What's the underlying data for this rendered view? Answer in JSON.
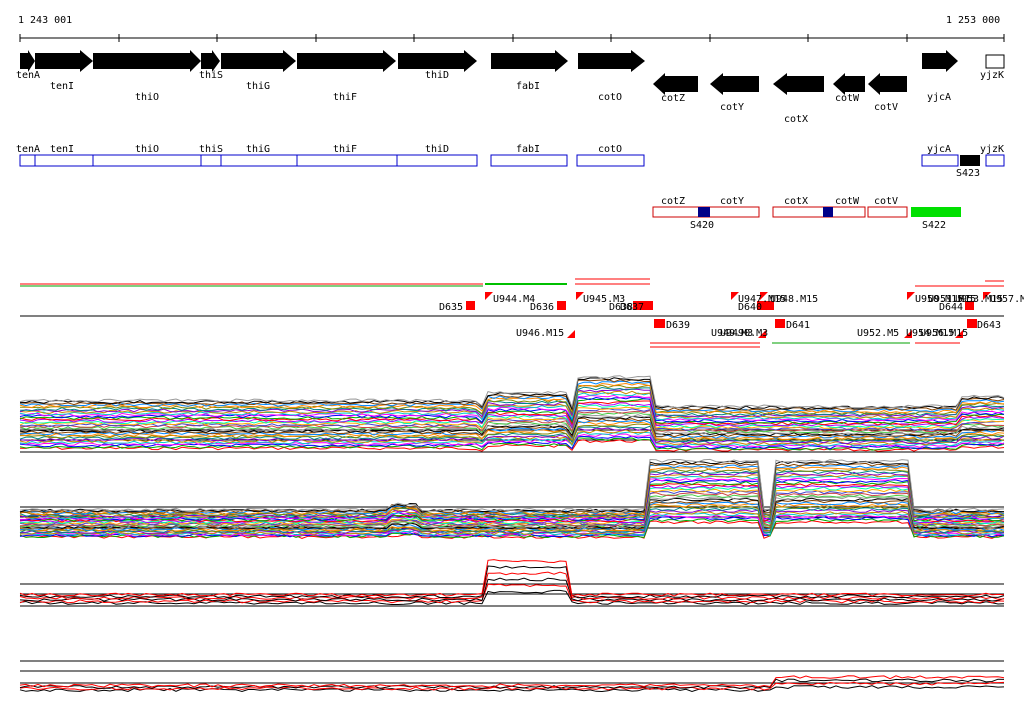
{
  "ruler": {
    "start_label": "1 243 001",
    "end_label": "1 253 000"
  },
  "genes_fwd": [
    {
      "label": "tenA"
    },
    {
      "label": "tenI"
    },
    {
      "label": "thiO"
    },
    {
      "label": "thiS"
    },
    {
      "label": "thiG"
    },
    {
      "label": "thiF"
    },
    {
      "label": "thiD"
    },
    {
      "label": "fabI"
    },
    {
      "label": "cotO"
    },
    {
      "label": "yjcA"
    },
    {
      "label": "yjzK"
    }
  ],
  "genes_rev": [
    {
      "label": "cotZ"
    },
    {
      "label": "cotY"
    },
    {
      "label": "cotX"
    },
    {
      "label": "cotW"
    },
    {
      "label": "cotV"
    }
  ],
  "operons_fwd": [
    {
      "label": "tenA"
    },
    {
      "label": "tenI"
    },
    {
      "label": "thiO"
    },
    {
      "label": "thiS"
    },
    {
      "label": "thiG"
    },
    {
      "label": "thiF"
    },
    {
      "label": "thiD"
    },
    {
      "label": "fabI"
    },
    {
      "label": "cotO"
    },
    {
      "label": "yjcA"
    },
    {
      "label": "yjzK"
    },
    {
      "label": "S423"
    }
  ],
  "operons_rev": [
    {
      "label": "cotZ"
    },
    {
      "label": "cotY"
    },
    {
      "label": "S420"
    },
    {
      "label": "cotX"
    },
    {
      "label": "cotW"
    },
    {
      "label": "cotV"
    },
    {
      "label": "S422"
    }
  ],
  "segments_top": [
    {
      "label": "D635"
    },
    {
      "label": "U944.M4"
    },
    {
      "label": "D636"
    },
    {
      "label": "U945.M3"
    },
    {
      "label": "D638"
    },
    {
      "label": "D637"
    },
    {
      "label": "U947.M15"
    },
    {
      "label": "D640"
    },
    {
      "label": "U948.M15"
    },
    {
      "label": "U950.M15"
    },
    {
      "label": "U951.M15"
    },
    {
      "label": "U953.M15"
    },
    {
      "label": "U957.M15"
    },
    {
      "label": "D644"
    }
  ],
  "segments_bottom": [
    {
      "label": "U946.M15"
    },
    {
      "label": "D639"
    },
    {
      "label": "U949.M3"
    },
    {
      "label": "U9490.M3"
    },
    {
      "label": "D641"
    },
    {
      "label": "U952.M5"
    },
    {
      "label": "U954.M15"
    },
    {
      "label": "U956.M15"
    },
    {
      "label": "D643"
    }
  ],
  "colors": {
    "gene_arrow": "#000000",
    "operon_fwd": "#0000cc",
    "operon_rev": "#cc0000",
    "segment": "#ff0000",
    "operon_blue_fill": "#000088",
    "operon_green_fill": "#00e000",
    "operon_black_fill": "#000000"
  },
  "panels": [
    {
      "name": "expression-panel-1"
    },
    {
      "name": "expression-panel-2"
    },
    {
      "name": "expression-panel-3"
    },
    {
      "name": "expression-panel-4"
    }
  ]
}
